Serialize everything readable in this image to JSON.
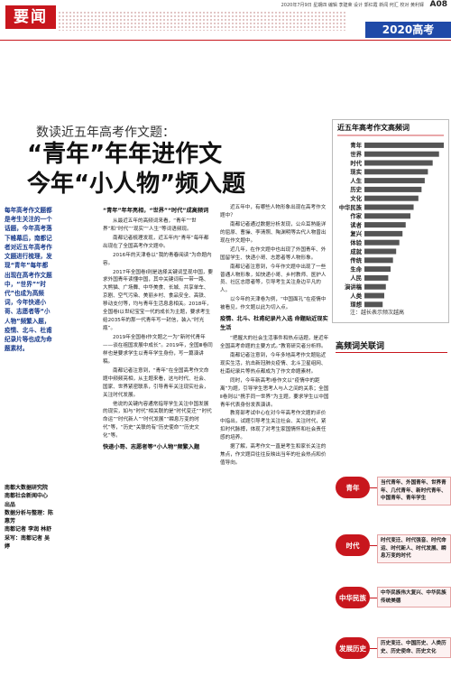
{
  "header": {
    "date_line": "2020年7月9日 星期四 编辑 李建荣 设计 郭红霞 新闻 何汇 校对 黄利铎",
    "page_no": "A08",
    "section": "要闻",
    "banner": "2020高考"
  },
  "article": {
    "kicker": "数读近五年高考作文题：",
    "title_lines": [
      "“青年”年年进作文",
      "今年“小人物”频入题"
    ],
    "lead": "每年高考作文题都是考生关注的一个话题，今年高考落下帷幕后，南都记者对近五年高考作文题进行梳理，发现“青年”每年都出现在高考作文题中，“世界”“时代”也成为高频词，今年快递小哥、志愿者等“小人物”频繁入题，疫情、北斗、杜甫纪录片等也成为命题素材。",
    "byline": [
      "南都大数据研究院",
      "南都社会新闻中心",
      "出品",
      "数据分析与整理：陈惠芳",
      "南都记者 李润 林舒",
      "采写：南都记者 吴婷"
    ],
    "body": [
      {
        "heading": "“青年”年年亮相，“世界”“时代”成高频词",
        "paragraphs": [
          "从最近五年的高频词来看，“青年”“世界”和“时代”“现实”“人生”等词语频现。",
          "南都记者梳理发现，近五年内“青年”每年都出现在了全国高考作文题中。",
          "2016年的天津卷以“我的青春阅读”为命题内容。",
          "2017年全国卷Ⅰ则是选择关键词呈现中国，要求外国青年读懂中国，其中关键词有一带一路、大熊猫、广场舞、中华美食、长城、共享单车、京剧、空气污染、美丽乡村、食品安全、高铁、移动支付等，均与青年生活息息相关。2018年，全国卷Ⅰ以世纪宝宝一代的成长为主题，要求考生给2035年的那一代青年写一封信，装入“时光瓶”。",
          "2019年全国卷Ⅰ作文题之一为“新时代青年——谈在祖国发展中成长”。2019年，全国Ⅲ卷同样也是要求学生以青年学生身份，写一篇演讲稿。",
          "南都记者注意到，“青年”在全国高考作文命题中频频亮相，从主题来看，这与时代、社会、国家、世界紧密联系，引导青年关注现实社会，关注时代发展。",
          "他说的关键内容通常指导学生关注中国发展的现实，如与“时代”相关联的是“时代变迁”“时代命运”“时代新人”“时代发展”“瞬息万变的时代”等，“历史”关联的有“历史使命”“历史文化”等。"
        ]
      },
      {
        "heading": "快递小哥、志愿者等“小人物”频繁入题",
        "paragraphs": [
          "近五年中，有哪些人物形象出现在高考作文题中？",
          "南都记者通过数据分析发现，公众耳熟能详的屈原、曹操、李清照、陶渊明等古代人物曾出现在作文题中。",
          "近几年，在作文题中也出现了外国青年、外国留学生、快递小哥、志愿者等人物形象。",
          "南都记者注意到，今年作文题中出现了一些普通人物形象，如快递小哥、乡村教师、医护人员、社区志愿者等，引导考生关注身边平凡的人。",
          "以今年的天津卷为例，“中国面孔”在疫情中被看见，作文题以此为切入点。"
        ]
      },
      {
        "heading": "疫情、北斗、杜甫纪录片入选 命题贴近现实生活",
        "paragraphs": [
          "“把握大的社会生活事件和热点话题，是近年全国高考命题的主要方式。”教育研究者分析称。",
          "南都记者注意到，今年多地高考作文题贴近现实生活，抗击新冠肺炎疫情、北斗卫星组网、杜甫纪录片等热点都成为了作文命题素材。",
          "同时，今年新高考Ⅰ卷作文以“疫情中的距离”为题，引导学生思考人与人之间的关系；全国Ⅱ卷则以“携手同一世界”为主题，要求学生以中国青年代表身份发表演讲。",
          "教育部考试中心在对今年高考作文题的评价中指出，试题引导考生关注社会、关注时代，紧扣时代脉搏，体现了对考生家国情怀和社会责任感的培养。",
          "据了解，高考作文一直是考生和家长关注的焦点，作文题目往往反映出当年的社会热点和价值导向。"
        ]
      }
    ]
  },
  "chart_data": {
    "type": "bar",
    "title": "近五年高考作文高频词",
    "categories": [
      "青年",
      "世界",
      "时代",
      "现实",
      "人生",
      "历史",
      "文化",
      "中华民族",
      "作家",
      "读者",
      "复兴",
      "体验",
      "成就",
      "传统",
      "生命",
      "人民",
      "演讲稿",
      "人类",
      "理想"
    ],
    "values": [
      100,
      94,
      86,
      80,
      76,
      72,
      68,
      62,
      58,
      52,
      48,
      44,
      40,
      36,
      33,
      30,
      27,
      25,
      23
    ],
    "color": "#555555",
    "note": "注：越长表示频次越高"
  },
  "related": {
    "title": "高频词关联词",
    "rows": [
      {
        "word": "青年",
        "terms": "当代青年、外国青年、世界青年、几代青年、新时代青年、中国青年、青年学生"
      },
      {
        "word": "时代",
        "terms": "时代变迁、时代强音、时代命运、时代新人、时代发展、瞬息万变的时代"
      },
      {
        "word": "中华民族",
        "terms": "中华民族伟大复兴、中华民族传统美德"
      },
      {
        "word": "发展历史",
        "terms": "历史变迁、中国历史、人类历史、历史使命、历史文化"
      }
    ]
  }
}
